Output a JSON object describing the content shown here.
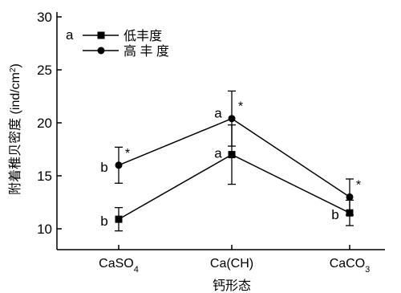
{
  "chart_data": {
    "type": "line",
    "panel_label": "a",
    "categories": [
      "CaSO4",
      "Ca(CH)",
      "CaCO3"
    ],
    "category_labels": [
      {
        "base": "CaSO",
        "sub": "4"
      },
      {
        "base": "Ca(CH)",
        "sub": ""
      },
      {
        "base": "CaCO",
        "sub": "3"
      }
    ],
    "xlabel": "钙形态",
    "ylabel_main": "附着稚贝密度 (ind/cm",
    "ylabel_sup": "2",
    "ylabel_tail": ")",
    "ylim": [
      8,
      30
    ],
    "yticks": [
      10,
      15,
      20,
      25,
      30
    ],
    "grid": false,
    "legend_position": "top-left",
    "series": [
      {
        "name": "低丰度",
        "marker": "square",
        "values": [
          10.9,
          17.0,
          11.5
        ],
        "errors": [
          1.1,
          2.8,
          1.2
        ],
        "letters": [
          "b",
          "a",
          "b"
        ],
        "stars": [
          "",
          "",
          ""
        ]
      },
      {
        "name": "高 丰 度",
        "marker": "circle",
        "values": [
          16.0,
          20.4,
          13.0
        ],
        "errors": [
          1.7,
          2.6,
          1.7
        ],
        "letters": [
          "b",
          "a",
          ""
        ],
        "stars": [
          "*",
          "*",
          "*"
        ]
      }
    ]
  }
}
